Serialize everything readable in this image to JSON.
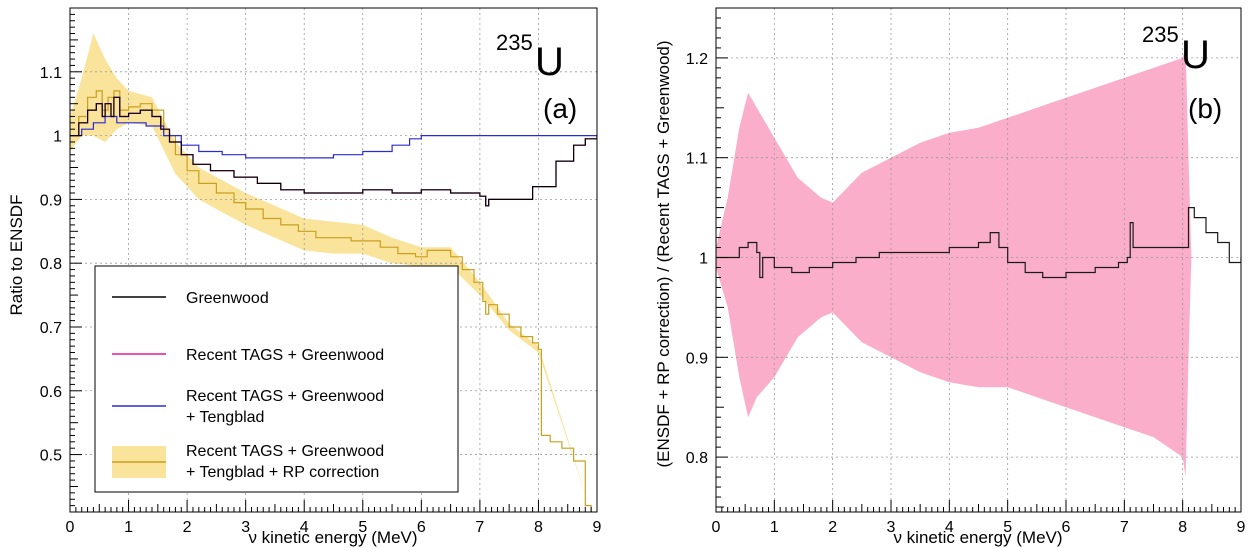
{
  "chart_data": [
    {
      "type": "line",
      "panel_tag": "(a)",
      "isotope": {
        "mass": "235",
        "symbol": "U"
      },
      "xlabel": "ν kinetic energy (MeV)",
      "ylabel": "Ratio to ENSDF",
      "xlim": [
        0,
        9
      ],
      "ylim": [
        0.41,
        1.2
      ],
      "x_ticks": [
        "0",
        "1",
        "2",
        "3",
        "4",
        "5",
        "6",
        "7",
        "8",
        "9"
      ],
      "y_ticks": [
        {
          "value": 0.5,
          "label": "0.5"
        },
        {
          "value": 0.6,
          "label": "0.6"
        },
        {
          "value": 0.7,
          "label": "0.7"
        },
        {
          "value": 0.8,
          "label": "0.8"
        },
        {
          "value": 0.9,
          "label": "0.9"
        },
        {
          "value": 1.0,
          "label": "1"
        },
        {
          "value": 1.1,
          "label": "1.1"
        }
      ],
      "grid": true,
      "legend_position": "lower-left",
      "series": [
        {
          "name": "Greenwood",
          "color": "#000000",
          "points": [
            [
              0,
              1.0
            ],
            [
              0.15,
              1.02
            ],
            [
              0.3,
              1.04
            ],
            [
              0.45,
              1.05
            ],
            [
              0.55,
              1.03
            ],
            [
              0.6,
              1.05
            ],
            [
              0.7,
              1.03
            ],
            [
              0.75,
              1.06
            ],
            [
              0.85,
              1.03
            ],
            [
              1.0,
              1.035
            ],
            [
              1.2,
              1.04
            ],
            [
              1.4,
              1.03
            ],
            [
              1.55,
              1.01
            ],
            [
              1.7,
              0.99
            ],
            [
              1.9,
              0.97
            ],
            [
              2.1,
              0.955
            ],
            [
              2.4,
              0.945
            ],
            [
              2.8,
              0.935
            ],
            [
              3.2,
              0.925
            ],
            [
              3.6,
              0.915
            ],
            [
              4.0,
              0.91
            ],
            [
              4.5,
              0.91
            ],
            [
              5.0,
              0.915
            ],
            [
              5.5,
              0.91
            ],
            [
              6.0,
              0.915
            ],
            [
              6.5,
              0.91
            ],
            [
              7.0,
              0.905
            ],
            [
              7.1,
              0.89
            ],
            [
              7.15,
              0.9
            ],
            [
              7.5,
              0.9
            ],
            [
              7.9,
              0.92
            ],
            [
              8.3,
              0.96
            ],
            [
              8.6,
              0.985
            ],
            [
              8.8,
              0.995
            ],
            [
              9.0,
              1.0
            ]
          ]
        },
        {
          "name": "Recent TAGS + Greenwood",
          "color": "#e0189a",
          "points": [
            [
              0,
              1.0
            ],
            [
              0.15,
              1.02
            ],
            [
              0.3,
              1.04
            ],
            [
              0.45,
              1.05
            ],
            [
              0.55,
              1.03
            ],
            [
              0.6,
              1.05
            ],
            [
              0.7,
              1.03
            ],
            [
              0.75,
              1.06
            ],
            [
              0.85,
              1.03
            ],
            [
              1.0,
              1.035
            ],
            [
              1.2,
              1.04
            ],
            [
              1.4,
              1.03
            ],
            [
              1.55,
              1.01
            ],
            [
              1.7,
              0.99
            ],
            [
              1.9,
              0.97
            ],
            [
              2.1,
              0.955
            ],
            [
              2.4,
              0.945
            ],
            [
              2.8,
              0.935
            ],
            [
              3.2,
              0.925
            ],
            [
              3.6,
              0.915
            ],
            [
              4.0,
              0.91
            ],
            [
              4.5,
              0.91
            ],
            [
              5.0,
              0.915
            ],
            [
              5.5,
              0.91
            ],
            [
              6.0,
              0.915
            ],
            [
              6.5,
              0.91
            ],
            [
              7.0,
              0.905
            ],
            [
              7.1,
              0.89
            ],
            [
              7.15,
              0.9
            ],
            [
              7.5,
              0.9
            ],
            [
              7.9,
              0.92
            ],
            [
              8.3,
              0.96
            ],
            [
              8.6,
              0.985
            ],
            [
              8.8,
              0.995
            ],
            [
              9.0,
              1.0
            ]
          ]
        },
        {
          "name": "Recent TAGS + Greenwood + Tengblad",
          "color": "#2b2bd6",
          "points": [
            [
              0,
              1.0
            ],
            [
              0.2,
              1.01
            ],
            [
              0.4,
              1.02
            ],
            [
              0.6,
              1.03
            ],
            [
              0.8,
              1.02
            ],
            [
              1.0,
              1.02
            ],
            [
              1.3,
              1.015
            ],
            [
              1.6,
              1.0
            ],
            [
              1.9,
              0.985
            ],
            [
              2.2,
              0.975
            ],
            [
              2.6,
              0.97
            ],
            [
              3.0,
              0.965
            ],
            [
              3.5,
              0.965
            ],
            [
              4.0,
              0.965
            ],
            [
              4.5,
              0.97
            ],
            [
              5.0,
              0.975
            ],
            [
              5.5,
              0.985
            ],
            [
              5.8,
              0.995
            ],
            [
              6.0,
              1.0
            ],
            [
              6.5,
              1.0
            ],
            [
              7.0,
              1.0
            ],
            [
              7.5,
              1.0
            ],
            [
              8.0,
              1.0
            ],
            [
              8.5,
              1.0
            ],
            [
              9.0,
              1.0
            ]
          ]
        },
        {
          "name": "Recent TAGS + Greenwood + Tengblad + RP correction",
          "color": "#c9a020",
          "band_color": "#fae39a",
          "points": [
            [
              0,
              1.0
            ],
            [
              0.15,
              1.03
            ],
            [
              0.3,
              1.06
            ],
            [
              0.45,
              1.07
            ],
            [
              0.55,
              1.04
            ],
            [
              0.65,
              1.06
            ],
            [
              0.75,
              1.07
            ],
            [
              0.85,
              1.04
            ],
            [
              1.0,
              1.045
            ],
            [
              1.2,
              1.05
            ],
            [
              1.4,
              1.04
            ],
            [
              1.6,
              1.0
            ],
            [
              1.8,
              0.97
            ],
            [
              2.0,
              0.945
            ],
            [
              2.2,
              0.925
            ],
            [
              2.5,
              0.91
            ],
            [
              2.8,
              0.895
            ],
            [
              3.0,
              0.885
            ],
            [
              3.3,
              0.87
            ],
            [
              3.6,
              0.86
            ],
            [
              3.9,
              0.85
            ],
            [
              4.2,
              0.84
            ],
            [
              4.5,
              0.84
            ],
            [
              4.8,
              0.835
            ],
            [
              5.0,
              0.835
            ],
            [
              5.3,
              0.825
            ],
            [
              5.6,
              0.815
            ],
            [
              5.9,
              0.81
            ],
            [
              6.1,
              0.82
            ],
            [
              6.3,
              0.82
            ],
            [
              6.5,
              0.81
            ],
            [
              6.7,
              0.79
            ],
            [
              6.9,
              0.77
            ],
            [
              7.05,
              0.74
            ],
            [
              7.1,
              0.72
            ],
            [
              7.15,
              0.735
            ],
            [
              7.3,
              0.72
            ],
            [
              7.5,
              0.7
            ],
            [
              7.7,
              0.685
            ],
            [
              7.9,
              0.675
            ],
            [
              8.0,
              0.665
            ],
            [
              8.05,
              0.53
            ],
            [
              8.2,
              0.52
            ],
            [
              8.4,
              0.51
            ],
            [
              8.6,
              0.49
            ],
            [
              8.8,
              0.42
            ],
            [
              8.9,
              0.41
            ]
          ],
          "band": [
            [
              0,
              0.975,
              1.03
            ],
            [
              0.2,
              1.0,
              1.09
            ],
            [
              0.4,
              1.0,
              1.16
            ],
            [
              0.6,
              0.99,
              1.12
            ],
            [
              0.8,
              1.01,
              1.09
            ],
            [
              1.0,
              1.02,
              1.07
            ],
            [
              1.4,
              1.015,
              1.06
            ],
            [
              1.8,
              0.94,
              0.99
            ],
            [
              2.2,
              0.9,
              0.95
            ],
            [
              2.6,
              0.88,
              0.93
            ],
            [
              3.0,
              0.86,
              0.91
            ],
            [
              3.5,
              0.84,
              0.89
            ],
            [
              4.0,
              0.82,
              0.87
            ],
            [
              4.5,
              0.815,
              0.865
            ],
            [
              5.0,
              0.815,
              0.86
            ],
            [
              5.5,
              0.8,
              0.84
            ],
            [
              6.0,
              0.795,
              0.825
            ],
            [
              6.5,
              0.795,
              0.825
            ],
            [
              7.0,
              0.75,
              0.77
            ],
            [
              7.5,
              0.695,
              0.705
            ],
            [
              8.0,
              0.66,
              0.67
            ],
            [
              8.9,
              0.41,
              0.41
            ]
          ]
        }
      ],
      "legend": [
        {
          "line1": "Greenwood",
          "line2": ""
        },
        {
          "line1": "Recent TAGS + Greenwood",
          "line2": ""
        },
        {
          "line1": "Recent TAGS + Greenwood",
          "line2": "+ Tengblad"
        },
        {
          "line1": "Recent TAGS + Greenwood",
          "line2": "+ Tengblad + RP correction"
        }
      ]
    },
    {
      "type": "line",
      "panel_tag": "(b)",
      "isotope": {
        "mass": "235",
        "symbol": "U"
      },
      "xlabel": "ν kinetic energy (MeV)",
      "ylabel": "(ENSDF + RP correction) / (Recent TAGS + Greenwood)",
      "xlim": [
        0,
        9
      ],
      "ylim": [
        0.745,
        1.25
      ],
      "x_ticks": [
        "0",
        "1",
        "2",
        "3",
        "4",
        "5",
        "6",
        "7",
        "8",
        "9"
      ],
      "y_ticks": [
        {
          "value": 0.8,
          "label": "0.8"
        },
        {
          "value": 0.9,
          "label": "0.9"
        },
        {
          "value": 1.0,
          "label": "1"
        },
        {
          "value": 1.1,
          "label": "1.1"
        },
        {
          "value": 1.2,
          "label": "1.2"
        }
      ],
      "grid": true,
      "series": [
        {
          "name": "",
          "color": "#1a1a1a",
          "band_color": "#fbaec9",
          "points": [
            [
              0,
              1.0
            ],
            [
              0.2,
              1.0
            ],
            [
              0.4,
              1.01
            ],
            [
              0.55,
              1.015
            ],
            [
              0.7,
              1.005
            ],
            [
              0.75,
              0.98
            ],
            [
              0.8,
              1.0
            ],
            [
              1.0,
              0.99
            ],
            [
              1.3,
              0.985
            ],
            [
              1.6,
              0.99
            ],
            [
              2.0,
              0.995
            ],
            [
              2.4,
              1.0
            ],
            [
              2.8,
              1.005
            ],
            [
              3.2,
              1.005
            ],
            [
              3.6,
              1.005
            ],
            [
              4.0,
              1.01
            ],
            [
              4.5,
              1.015
            ],
            [
              4.7,
              1.025
            ],
            [
              4.85,
              1.01
            ],
            [
              5.0,
              0.995
            ],
            [
              5.3,
              0.985
            ],
            [
              5.6,
              0.98
            ],
            [
              6.0,
              0.985
            ],
            [
              6.5,
              0.99
            ],
            [
              6.9,
              0.995
            ],
            [
              7.05,
              1.0
            ],
            [
              7.1,
              1.035
            ],
            [
              7.15,
              1.01
            ],
            [
              7.3,
              1.01
            ],
            [
              7.6,
              1.01
            ],
            [
              7.9,
              1.01
            ],
            [
              8.05,
              1.01
            ],
            [
              8.1,
              1.05
            ],
            [
              8.2,
              1.04
            ],
            [
              8.4,
              1.025
            ],
            [
              8.6,
              1.015
            ],
            [
              8.8,
              0.995
            ],
            [
              9.0,
              1.0
            ]
          ],
          "band": [
            [
              0,
              0.99,
              1.01
            ],
            [
              0.2,
              0.95,
              1.06
            ],
            [
              0.4,
              0.88,
              1.13
            ],
            [
              0.55,
              0.84,
              1.165
            ],
            [
              0.7,
              0.86,
              1.15
            ],
            [
              1.0,
              0.88,
              1.12
            ],
            [
              1.4,
              0.92,
              1.08
            ],
            [
              1.8,
              0.94,
              1.06
            ],
            [
              2.0,
              0.945,
              1.055
            ],
            [
              2.5,
              0.915,
              1.085
            ],
            [
              3.0,
              0.9,
              1.1
            ],
            [
              3.5,
              0.885,
              1.115
            ],
            [
              4.0,
              0.875,
              1.125
            ],
            [
              4.5,
              0.87,
              1.13
            ],
            [
              5.0,
              0.87,
              1.14
            ],
            [
              5.5,
              0.86,
              1.15
            ],
            [
              6.0,
              0.85,
              1.16
            ],
            [
              6.5,
              0.84,
              1.17
            ],
            [
              7.0,
              0.83,
              1.18
            ],
            [
              7.5,
              0.82,
              1.19
            ],
            [
              8.0,
              0.8,
              1.2
            ],
            [
              8.05,
              0.78,
              1.21
            ],
            [
              8.1,
              0.9,
              1.1
            ],
            [
              8.15,
              1.0,
              1.0
            ],
            [
              9.0,
              1.0,
              1.0
            ]
          ]
        }
      ]
    }
  ]
}
